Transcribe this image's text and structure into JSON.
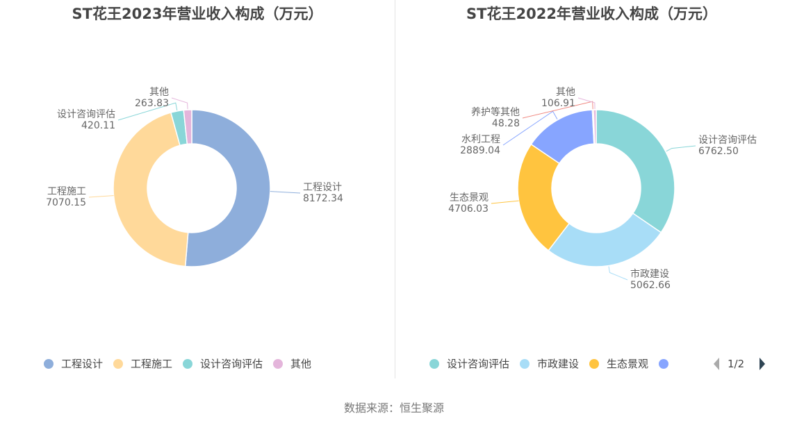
{
  "source_note": "数据来源：恒生聚源",
  "chart_data": [
    {
      "type": "pie",
      "title": "ST花王2023年营业收入构成（万元）",
      "categories": [
        "工程设计",
        "工程施工",
        "设计咨询评估",
        "其他"
      ],
      "values": [
        8172.34,
        7070.15,
        420.11,
        263.83
      ],
      "value_labels": [
        "8172.34",
        "7070.15",
        "420.11",
        "263.83"
      ],
      "colors": [
        "#8eaedb",
        "#ffd99a",
        "#89d6d8",
        "#e4b5db"
      ],
      "legend": {
        "position": "bottom",
        "items": [
          "工程设计",
          "工程施工",
          "设计咨询评估",
          "其他"
        ]
      }
    },
    {
      "type": "pie",
      "title": "ST花王2022年营业收入构成（万元）",
      "categories": [
        "设计咨询评估",
        "市政建设",
        "生态景观",
        "水利工程",
        "养护等其他",
        "其他"
      ],
      "values": [
        6762.5,
        5062.66,
        4706.03,
        2889.04,
        48.28,
        106.91
      ],
      "value_labels": [
        "6762.50",
        "5062.66",
        "4706.03",
        "2889.04",
        "48.28",
        "106.91"
      ],
      "colors": [
        "#89d6d8",
        "#a8ddf7",
        "#ffc43f",
        "#87a5ff",
        "#f08880",
        "#e4b5db"
      ],
      "legend": {
        "position": "bottom",
        "items": [
          "设计咨询评估",
          "市政建设",
          "生态景观",
          ""
        ],
        "page": "1/2"
      }
    }
  ]
}
